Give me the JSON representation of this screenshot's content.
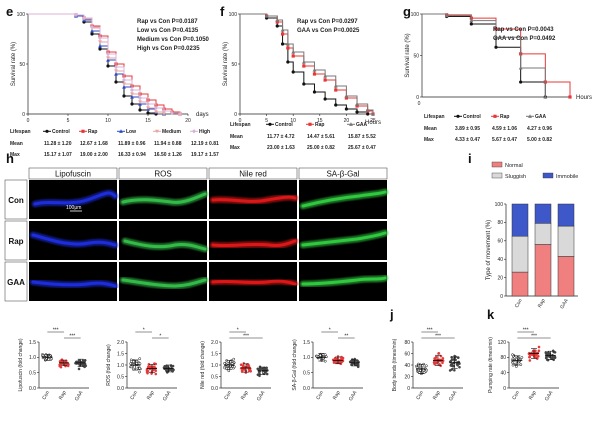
{
  "colors": {
    "control": "#111111",
    "rap": "#e63838",
    "low": "#2d4bc4",
    "medium": "#e8a3a3",
    "high": "#d8b3d8",
    "gaa": "#777777",
    "normal": "#f08080",
    "sluggish": "#d9d9d9",
    "immobile": "#3e57c9",
    "lipofuscin": "#1f2ee0",
    "ros": "#35c04a",
    "nilered": "#e01818",
    "sagal": "#30cc40"
  },
  "panels": {
    "e": {
      "label": "e",
      "stats": [
        "Rap vs Con P=0.0187",
        "Low vs Con P=0.4135",
        "Medium vs Con P=0.1050",
        "High vs Con P=0.0235"
      ],
      "table": {
        "header": [
          "Lifespan",
          "Control",
          "Rap",
          "Low",
          "Medium",
          "High"
        ],
        "rows": [
          [
            "Mean",
            "11.28 ± 1.20",
            "12.67 ± 1.68",
            "11.89 ± 0.96",
            "11.94 ± 0.88",
            "12.19 ± 0.81"
          ],
          [
            "Max",
            "15.17 ± 1.07",
            "19.00 ± 2.00",
            "16.33 ± 0.94",
            "16.50 ± 1.26",
            "19.17 ± 1.57"
          ]
        ]
      }
    },
    "f": {
      "label": "f",
      "stats": [
        "Rap vs Con P=0.0297",
        "GAA vs Con P=0.0025"
      ],
      "table": {
        "header": [
          "Lifespan",
          "Control",
          "Rap",
          "GAA"
        ],
        "rows": [
          [
            "Mean",
            "11.77 ± 4.72",
            "14.47 ± 5.61",
            "15.87 ± 5.52"
          ],
          [
            "Max",
            "23.00 ± 1.63",
            "25.00 ± 0.82",
            "25.67 ± 0.47"
          ]
        ]
      }
    },
    "g": {
      "label": "g",
      "stats": [
        "Rap vs Con P=0.0043",
        "GAA vs Con P=0.0492"
      ],
      "table": {
        "header": [
          "Lifespan",
          "Control",
          "Rap",
          "GAA"
        ],
        "rows": [
          [
            "Mean",
            "3.89 ± 0.95",
            "4.59 ± 1.06",
            "4.27 ± 0.96"
          ],
          [
            "Max",
            "4.33 ± 0.47",
            "5.67 ± 0.47",
            "5.00 ± 0.82"
          ]
        ]
      }
    },
    "h": {
      "label": "h",
      "columns": [
        "Lipofuscin",
        "ROS",
        "Nile red",
        "SA-β-Gal"
      ],
      "rows": [
        "Con",
        "Rap",
        "GAA"
      ],
      "scalebar": "100μm"
    },
    "i": {
      "label": "i"
    },
    "j": {
      "label": "j"
    },
    "k": {
      "label": "k"
    }
  },
  "chart_data": [
    {
      "id": "e",
      "type": "line",
      "xlabel": "days",
      "ylabel": "Survival rate (%)",
      "xlim": [
        0,
        20
      ],
      "ylim": [
        0,
        100
      ],
      "xticks": [
        0,
        5,
        10,
        15,
        20
      ],
      "yticks": [
        0,
        50,
        100
      ],
      "legend": [
        "Control",
        "Rap",
        "Low",
        "Medium",
        "High"
      ],
      "series": [
        {
          "name": "Control",
          "color": "#111111",
          "marker": "circle",
          "x": [
            0,
            6,
            7,
            8,
            9,
            10,
            11,
            12,
            13,
            14,
            15,
            16
          ],
          "y": [
            100,
            98,
            92,
            80,
            65,
            48,
            32,
            18,
            10,
            4,
            1,
            0
          ]
        },
        {
          "name": "Rap",
          "color": "#e63838",
          "marker": "square",
          "x": [
            0,
            6,
            7,
            8,
            9,
            10,
            11,
            12,
            13,
            14,
            15,
            16,
            17,
            18,
            19
          ],
          "y": [
            100,
            99,
            96,
            88,
            78,
            62,
            50,
            38,
            28,
            20,
            14,
            9,
            5,
            2,
            0
          ]
        },
        {
          "name": "Low",
          "color": "#2d4bc4",
          "marker": "triangle",
          "x": [
            0,
            6,
            7,
            8,
            9,
            10,
            11,
            12,
            13,
            14,
            15,
            16,
            17
          ],
          "y": [
            100,
            98,
            94,
            83,
            68,
            54,
            40,
            27,
            17,
            10,
            5,
            2,
            0
          ]
        },
        {
          "name": "Medium",
          "color": "#e8a3a3",
          "marker": "triangle-down",
          "x": [
            0,
            6,
            7,
            8,
            9,
            10,
            11,
            12,
            13,
            14,
            15,
            16,
            17
          ],
          "y": [
            100,
            99,
            95,
            86,
            72,
            56,
            43,
            30,
            20,
            12,
            6,
            2,
            0
          ]
        },
        {
          "name": "High",
          "color": "#d8b3d8",
          "marker": "diamond",
          "x": [
            0,
            6,
            7,
            8,
            9,
            10,
            11,
            12,
            13,
            14,
            15,
            16,
            17,
            18,
            19
          ],
          "y": [
            100,
            99,
            96,
            87,
            76,
            60,
            47,
            34,
            24,
            16,
            10,
            6,
            3,
            1,
            0
          ]
        }
      ]
    },
    {
      "id": "f",
      "type": "line",
      "xlabel": "Hours",
      "ylabel": "Survival rate (%)",
      "xlim": [
        0,
        25
      ],
      "ylim": [
        0,
        100
      ],
      "xticks": [
        0,
        5,
        10,
        15,
        20,
        25
      ],
      "yticks": [
        0,
        50,
        100
      ],
      "legend": [
        "Control",
        "Rap",
        "GAA"
      ],
      "series": [
        {
          "name": "Control",
          "color": "#111111",
          "marker": "circle",
          "x": [
            0,
            5,
            7,
            8,
            9,
            10,
            12,
            14,
            16,
            18,
            20,
            22,
            24
          ],
          "y": [
            100,
            96,
            88,
            70,
            52,
            42,
            30,
            22,
            15,
            9,
            5,
            2,
            0
          ]
        },
        {
          "name": "Rap",
          "color": "#e63838",
          "marker": "square",
          "x": [
            0,
            5,
            7,
            8,
            9,
            10,
            12,
            14,
            16,
            18,
            20,
            22,
            24,
            25
          ],
          "y": [
            100,
            98,
            92,
            80,
            66,
            58,
            48,
            40,
            34,
            24,
            16,
            8,
            3,
            0
          ]
        },
        {
          "name": "GAA",
          "color": "#777777",
          "marker": "triangle",
          "x": [
            0,
            5,
            7,
            8,
            9,
            10,
            12,
            14,
            16,
            18,
            20,
            22,
            24,
            25
          ],
          "y": [
            100,
            98,
            94,
            84,
            70,
            62,
            52,
            44,
            38,
            28,
            18,
            10,
            4,
            0
          ]
        }
      ]
    },
    {
      "id": "g",
      "type": "line",
      "xlabel": "Hours",
      "ylabel": "Survival rate (%)",
      "xlim": [
        0,
        6
      ],
      "ylim": [
        0,
        100
      ],
      "yticks": [
        0,
        50,
        100
      ],
      "legend": [
        "Control",
        "Rap",
        "GAA"
      ],
      "series": [
        {
          "name": "Control",
          "color": "#111111",
          "marker": "circle",
          "x": [
            0,
            1,
            2,
            3,
            4,
            5
          ],
          "y": [
            100,
            97,
            88,
            60,
            18,
            0
          ]
        },
        {
          "name": "Rap",
          "color": "#e63838",
          "marker": "square",
          "x": [
            0,
            1,
            2,
            3,
            4,
            5,
            6
          ],
          "y": [
            100,
            99,
            95,
            82,
            52,
            18,
            0
          ]
        },
        {
          "name": "GAA",
          "color": "#777777",
          "marker": "triangle",
          "x": [
            0,
            1,
            2,
            3,
            4,
            5
          ],
          "y": [
            100,
            98,
            92,
            72,
            35,
            0
          ]
        }
      ]
    },
    {
      "id": "i",
      "type": "bar",
      "stacked": true,
      "ylabel": "Type of movement (%)",
      "categories": [
        "Con",
        "Rap",
        "GAA"
      ],
      "ylim": [
        0,
        100
      ],
      "yticks": [
        0,
        20,
        40,
        60,
        80,
        100
      ],
      "legend": [
        "Normal",
        "Sluggish",
        "Immobile"
      ],
      "series": [
        {
          "name": "Normal",
          "color": "#f08080",
          "values": [
            26,
            56,
            43
          ]
        },
        {
          "name": "Sluggish",
          "color": "#d9d9d9",
          "values": [
            39,
            23,
            33
          ]
        },
        {
          "name": "Immobile",
          "color": "#3e57c9",
          "values": [
            35,
            21,
            24
          ]
        }
      ]
    },
    {
      "id": "h1",
      "type": "scatter",
      "ylabel": "Lipofuscin (fold change)",
      "categories": [
        "Con",
        "Rap",
        "GAA"
      ],
      "ylim": [
        0,
        1.5
      ],
      "yticks": [
        "0.0",
        "0.5",
        "1.0",
        "1.5"
      ],
      "means": [
        1.0,
        0.82,
        0.82
      ],
      "sd": [
        0.1,
        0.09,
        0.12
      ],
      "significance": [
        [
          "Con",
          "Rap",
          "***"
        ],
        [
          "Rap",
          "GAA",
          "***"
        ]
      ]
    },
    {
      "id": "h2",
      "type": "scatter",
      "ylabel": "ROS (fold change)",
      "categories": [
        "Con",
        "Rap",
        "GAA"
      ],
      "ylim": [
        0,
        2.0
      ],
      "yticks": [
        "0.0",
        "0.5",
        "1.0",
        "1.5",
        "2.0"
      ],
      "means": [
        1.0,
        0.85,
        0.85
      ],
      "sd": [
        0.22,
        0.18,
        0.15
      ],
      "significance": [
        [
          "Con",
          "Rap",
          "*"
        ],
        [
          "Rap",
          "GAA",
          "*"
        ]
      ]
    },
    {
      "id": "h3",
      "type": "scatter",
      "ylabel": "Nile red (fold change)",
      "categories": [
        "Con",
        "Rap",
        "GAA"
      ],
      "ylim": [
        0,
        2.0
      ],
      "yticks": [
        "0.0",
        "0.5",
        "1.0",
        "1.5",
        "2.0"
      ],
      "means": [
        1.0,
        0.87,
        0.75
      ],
      "sd": [
        0.2,
        0.18,
        0.16
      ],
      "significance": [
        [
          "Con",
          "Rap",
          "*"
        ],
        [
          "Con",
          "GAA",
          "***"
        ]
      ]
    },
    {
      "id": "h4",
      "type": "scatter",
      "ylabel": "SA-β-Gal (fold change)",
      "categories": [
        "Con",
        "Rap",
        "GAA"
      ],
      "ylim": [
        0,
        1.5
      ],
      "yticks": [
        "0.0",
        "0.5",
        "1.0",
        "1.5"
      ],
      "means": [
        1.0,
        0.9,
        0.82
      ],
      "sd": [
        0.12,
        0.11,
        0.1
      ],
      "significance": [
        [
          "Con",
          "Rap",
          "*"
        ],
        [
          "Rap",
          "GAA",
          "**"
        ]
      ]
    },
    {
      "id": "j",
      "type": "scatter",
      "ylabel": "Body bends (times/min)",
      "categories": [
        "Con",
        "Rap",
        "GAA"
      ],
      "ylim": [
        0,
        80
      ],
      "yticks": [
        "0",
        "20",
        "40",
        "60",
        "80"
      ],
      "means": [
        33,
        48,
        44
      ],
      "sd": [
        8,
        9,
        10
      ],
      "significance": [
        [
          "Con",
          "Rap",
          "***"
        ],
        [
          "Con",
          "GAA",
          "***"
        ]
      ]
    },
    {
      "id": "k",
      "type": "scatter",
      "ylabel": "Pumping rate (times/min)",
      "categories": [
        "Con",
        "Rap",
        "GAA"
      ],
      "ylim": [
        0,
        120
      ],
      "yticks": [
        "0",
        "40",
        "80",
        "120"
      ],
      "means": [
        72,
        90,
        85
      ],
      "sd": [
        12,
        13,
        11
      ],
      "significance": [
        [
          "Con",
          "Rap",
          "***"
        ],
        [
          "Con",
          "GAA",
          "***"
        ]
      ]
    }
  ]
}
